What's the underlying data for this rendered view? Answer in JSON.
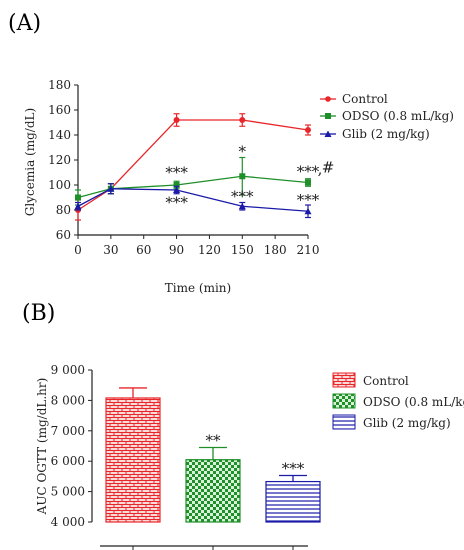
{
  "colors": {
    "control": "#e8262a",
    "odso": "#1f8f2a",
    "glib": "#1a1aa8",
    "axis": "#222222"
  },
  "chart_data": [
    {
      "panel": "(A)",
      "type": "line",
      "xlabel": "Time (min)",
      "ylabel": "Glycemia (mg/dL)",
      "xlim": [
        0,
        210
      ],
      "ylim": [
        60,
        180
      ],
      "x_ticks": [
        "0",
        "30",
        "60",
        "90",
        "120",
        "150",
        "180",
        "210"
      ],
      "y_ticks": [
        "60",
        "80",
        "100",
        "120",
        "140",
        "160",
        "180"
      ],
      "x": [
        0,
        30,
        90,
        150,
        210
      ],
      "legend_position": "top-right",
      "series": [
        {
          "name": "Control",
          "values": [
            80,
            97,
            152,
            152,
            144
          ],
          "err": [
            8,
            4,
            5,
            5,
            4
          ],
          "marker": "circle",
          "color_key": "control"
        },
        {
          "name": "ODSO (0.8 mL/kg)",
          "values": [
            90,
            97,
            100,
            107,
            102
          ],
          "err": [
            6,
            4,
            3,
            15,
            3
          ],
          "marker": "square",
          "color_key": "odso"
        },
        {
          "name": "Glib (2 mg/kg)",
          "values": [
            83,
            97,
            96,
            83,
            79
          ],
          "err": [
            3,
            4,
            3,
            3,
            5
          ],
          "marker": "triangle",
          "color_key": "glib"
        }
      ],
      "annotations": [
        {
          "text": "***",
          "x": 90,
          "y": 110
        },
        {
          "text": "***",
          "x": 90,
          "y": 86
        },
        {
          "text": "*",
          "x": 150,
          "y": 127
        },
        {
          "text": "***",
          "x": 150,
          "y": 91
        },
        {
          "text": "***",
          "x": 210,
          "y": 111
        },
        {
          "text": "#",
          "x": 210,
          "y": 114
        },
        {
          "text": ",",
          "x": 210,
          "y": 113
        },
        {
          "text": "***",
          "x": 210,
          "y": 88
        }
      ]
    },
    {
      "panel": "(B)",
      "type": "bar",
      "ylabel": "AUC OGTT (mg/dL.hr)",
      "ylim": [
        4000,
        9000
      ],
      "y_ticks": [
        "4 000",
        "5 000",
        "6 000",
        "7 000",
        "8 000",
        "9 000"
      ],
      "categories": [
        "Control",
        "ODSO (0.8 mL/kg)",
        "Glib (2 mg/kg)"
      ],
      "values": [
        8080,
        6050,
        5330
      ],
      "err": [
        330,
        400,
        200
      ],
      "stars": [
        "",
        "**",
        "***"
      ],
      "legend_position": "top-right",
      "patterns": [
        "brick",
        "checker",
        "hlines"
      ]
    }
  ]
}
